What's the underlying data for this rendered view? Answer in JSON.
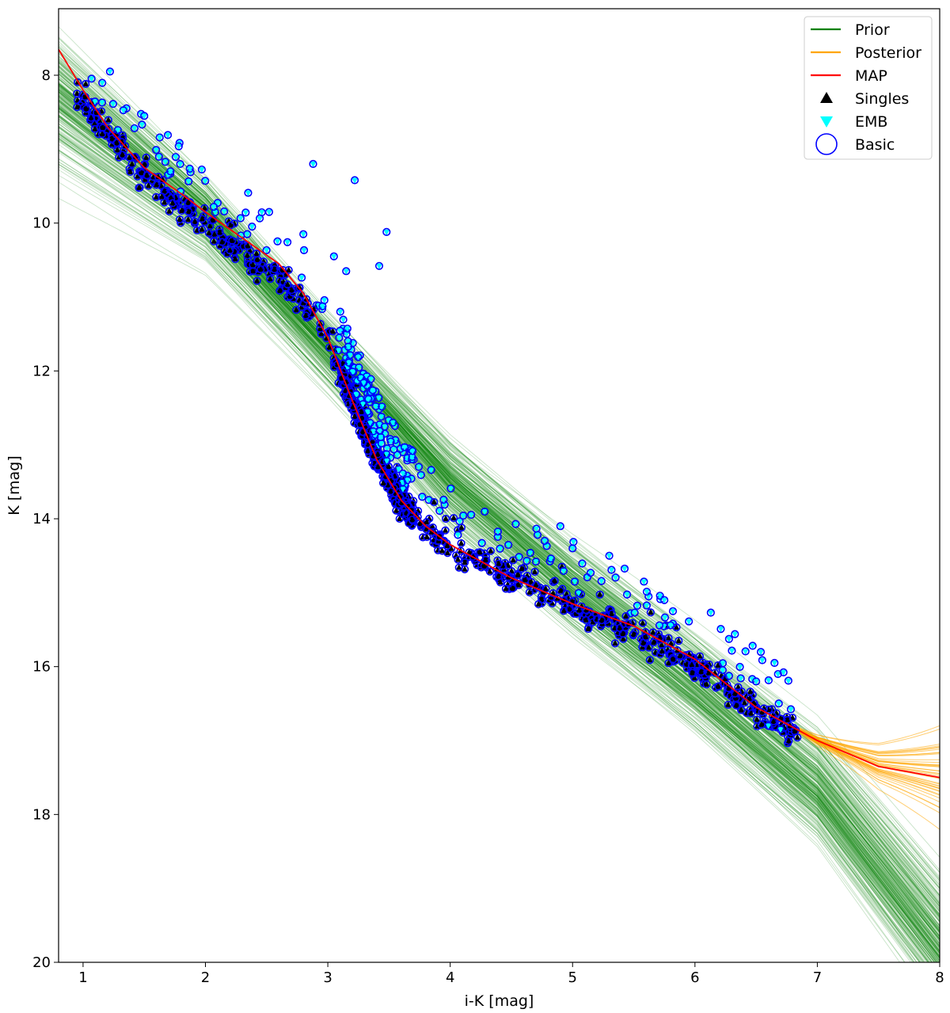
{
  "chart_data": {
    "type": "scatter",
    "title": "",
    "xlabel": "i-K [mag]",
    "ylabel": "K [mag]",
    "xlim": [
      0.8,
      8.0
    ],
    "ylim": [
      20.0,
      7.1
    ],
    "y_inverted": true,
    "xticks": [
      1,
      2,
      3,
      4,
      5,
      6,
      7,
      8
    ],
    "yticks": [
      8,
      10,
      12,
      14,
      16,
      18,
      20
    ],
    "grid": false,
    "legend_position": "top-right",
    "legend": [
      {
        "label": "Prior",
        "kind": "line",
        "color": "#008000"
      },
      {
        "label": "Posterior",
        "kind": "line",
        "color": "#ffa500"
      },
      {
        "label": "MAP",
        "kind": "line",
        "color": "#ff0000"
      },
      {
        "label": "Singles",
        "kind": "triangle-up",
        "color": "#000000"
      },
      {
        "label": "EMB",
        "kind": "triangle-down",
        "color": "#00ffff"
      },
      {
        "label": "Basic",
        "kind": "open-circle",
        "color": "#0000ff"
      }
    ],
    "prior_band": {
      "name": "Prior",
      "color": "#008000",
      "n_curves": 260,
      "center": [
        [
          0.8,
          8.3
        ],
        [
          2.0,
          9.9
        ],
        [
          3.0,
          11.7
        ],
        [
          4.0,
          13.5
        ],
        [
          5.0,
          14.9
        ],
        [
          6.0,
          16.2
        ],
        [
          7.0,
          17.6
        ],
        [
          8.0,
          19.7
        ]
      ],
      "halfwidth": [
        [
          0.8,
          1.0
        ],
        [
          2.0,
          0.6
        ],
        [
          3.0,
          0.65
        ],
        [
          4.0,
          0.85
        ],
        [
          5.0,
          0.85
        ],
        [
          6.0,
          0.85
        ],
        [
          7.0,
          0.9
        ],
        [
          8.0,
          1.0
        ]
      ]
    },
    "posterior_band": {
      "name": "Posterior",
      "color": "#ffa500",
      "n_curves": 40,
      "x_range": [
        6.5,
        8.0
      ],
      "spread_at_end": 0.6
    },
    "map_curve": {
      "name": "MAP",
      "color": "#ff0000",
      "points": [
        [
          0.8,
          7.65
        ],
        [
          1.0,
          8.2
        ],
        [
          1.2,
          8.7
        ],
        [
          1.5,
          9.25
        ],
        [
          1.8,
          9.6
        ],
        [
          2.0,
          9.85
        ],
        [
          2.3,
          10.2
        ],
        [
          2.6,
          10.55
        ],
        [
          2.8,
          10.95
        ],
        [
          3.0,
          11.55
        ],
        [
          3.2,
          12.4
        ],
        [
          3.4,
          13.2
        ],
        [
          3.6,
          13.75
        ],
        [
          3.8,
          14.1
        ],
        [
          4.0,
          14.35
        ],
        [
          4.5,
          14.8
        ],
        [
          5.0,
          15.15
        ],
        [
          5.5,
          15.45
        ],
        [
          6.0,
          15.9
        ],
        [
          6.5,
          16.55
        ],
        [
          7.0,
          17.0
        ],
        [
          7.5,
          17.35
        ],
        [
          8.0,
          17.5
        ]
      ]
    },
    "ridge": [
      [
        0.95,
        8.25
      ],
      [
        1.2,
        8.8
      ],
      [
        1.5,
        9.35
      ],
      [
        1.8,
        9.8
      ],
      [
        2.0,
        10.05
      ],
      [
        2.3,
        10.4
      ],
      [
        2.6,
        10.75
      ],
      [
        2.8,
        11.1
      ],
      [
        3.0,
        11.6
      ],
      [
        3.2,
        12.4
      ],
      [
        3.4,
        13.2
      ],
      [
        3.6,
        13.8
      ],
      [
        3.8,
        14.15
      ],
      [
        4.0,
        14.4
      ],
      [
        4.5,
        14.8
      ],
      [
        5.0,
        15.2
      ],
      [
        5.5,
        15.55
      ],
      [
        6.0,
        16.0
      ],
      [
        6.5,
        16.6
      ],
      [
        6.85,
        16.95
      ]
    ],
    "series": [
      {
        "name": "Singles",
        "marker": "triangle-up",
        "color": "#000000",
        "n_points": 1100,
        "distribution": "along ridge, scatter 0.15 mag"
      },
      {
        "name": "EMB",
        "marker": "triangle-down",
        "color": "#00ffff",
        "n_points": 240,
        "distribution": "0.2-0.9 mag brighter than ridge"
      },
      {
        "name": "Basic",
        "marker": "open-circle",
        "color": "#0000ff",
        "n_points": 1340,
        "distribution": "outlines all stars"
      }
    ],
    "outliers": [
      [
        1.22,
        7.95
      ],
      [
        1.5,
        8.55
      ],
      [
        2.88,
        9.2
      ],
      [
        3.22,
        9.42
      ],
      [
        3.48,
        10.12
      ],
      [
        3.42,
        10.58
      ],
      [
        2.8,
        10.15
      ],
      [
        3.15,
        10.65
      ],
      [
        3.05,
        10.45
      ],
      [
        6.65,
        15.95
      ],
      [
        6.5,
        16.2
      ],
      [
        6.7,
        16.85
      ],
      [
        6.6,
        16.8
      ],
      [
        5.75,
        15.1
      ],
      [
        5.82,
        15.25
      ],
      [
        4.9,
        14.1
      ],
      [
        5.3,
        14.5
      ],
      [
        5.0,
        14.4
      ]
    ]
  }
}
